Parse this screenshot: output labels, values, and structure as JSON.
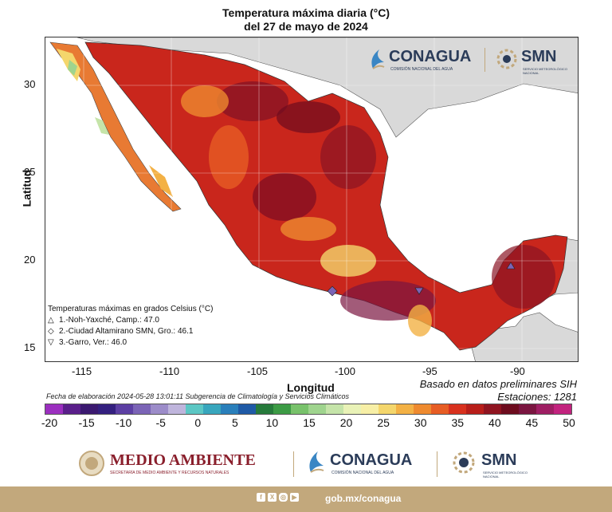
{
  "title_line1": "Temperatura máxima diaria (°C)",
  "title_line2": "del 27 de mayo de 2024",
  "axes": {
    "ylabel": "Latitud",
    "xlabel": "Longitud",
    "yticks": [
      "30",
      "25",
      "20",
      "15"
    ],
    "xticks": [
      "-115",
      "-110",
      "-105",
      "-100",
      "-95",
      "-90"
    ]
  },
  "basado": "Basado en datos preliminares SIH",
  "estaciones": "Estaciones:   1281",
  "fecha": "Fecha de elaboración 2024-05-28 13:01:11 Subgerencia de Climatología y Servicios Climáticos",
  "legend": {
    "title": "Temperaturas máximas en grados Celsius (°C)",
    "items": [
      {
        "symbol": "△",
        "label": "1.-Noh-Yaxché, Camp.: 47.0"
      },
      {
        "symbol": "◇",
        "label": "2.-Ciudad Altamirano SMN, Gro.: 46.1"
      },
      {
        "symbol": "▽",
        "label": "3.-Garro, Ver.: 46.0"
      }
    ]
  },
  "colorbar": {
    "labels": [
      "-20",
      "-15",
      "-10",
      "-5",
      "0",
      "5",
      "10",
      "15",
      "20",
      "25",
      "30",
      "35",
      "40",
      "45",
      "50"
    ],
    "colors": [
      "#9b2fbf",
      "#5a1f8a",
      "#3b1970",
      "#34207f",
      "#5c3fa3",
      "#7b64b6",
      "#9c8cc9",
      "#bfb5dc",
      "#5cc7c4",
      "#38a6bd",
      "#2a7fbb",
      "#1f5aa6",
      "#267a3b",
      "#3c9b45",
      "#78c26b",
      "#9fd48e",
      "#c5e4a9",
      "#e9f2b7",
      "#f7efa6",
      "#f4d66c",
      "#f3b145",
      "#ee8a2f",
      "#e75d24",
      "#d8311e",
      "#b81e1a",
      "#8f1420",
      "#6d0c1e",
      "#7a1540",
      "#9e1e63",
      "#c2237e"
    ]
  },
  "logos": {
    "conagua": "CONAGUA",
    "conagua_sub": "COMISIÓN NACIONAL DEL AGUA",
    "smn": "SMN",
    "smn_sub": "SERVICIO METEOROLÓGICO NACIONAL",
    "medio_ambiente": "MEDIO AMBIENTE",
    "medio_ambiente_sub": "SECRETARÍA DE MEDIO AMBIENTE Y RECURSOS NATURALES"
  },
  "footer": {
    "url": "gob.mx/conagua"
  }
}
